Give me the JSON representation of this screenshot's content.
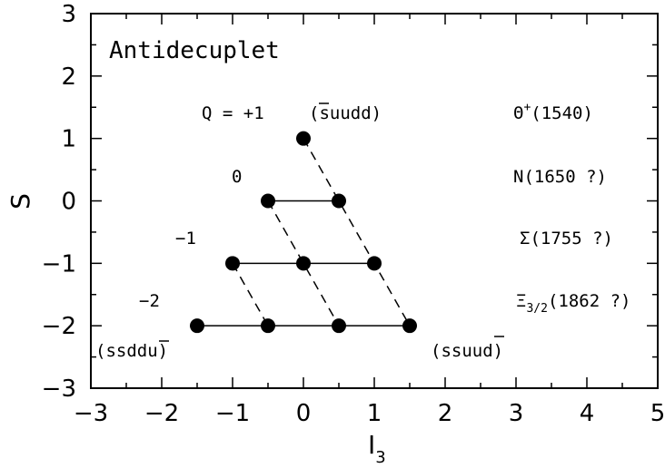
{
  "chart_data": {
    "type": "scatter",
    "title": "Antidecuplet",
    "xlabel": "I",
    "xlabel_sub": "3",
    "ylabel": "S",
    "xlim": [
      -3,
      5
    ],
    "ylim": [
      -3,
      3
    ],
    "xticks": [
      -3,
      -2,
      -1,
      0,
      1,
      2,
      3,
      4,
      5
    ],
    "yticks": [
      -3,
      -2,
      -1,
      0,
      1,
      2,
      3
    ],
    "xtick_labels": [
      "−3",
      "−2",
      "−1",
      "0",
      "1",
      "2",
      "3",
      "4",
      "5"
    ],
    "ytick_labels": [
      "−3",
      "−2",
      "−1",
      "0",
      "1",
      "2",
      "3"
    ],
    "points": [
      {
        "x": 0,
        "y": 1
      },
      {
        "x": -0.5,
        "y": 0
      },
      {
        "x": 0.5,
        "y": 0
      },
      {
        "x": -1,
        "y": -1
      },
      {
        "x": 0,
        "y": -1
      },
      {
        "x": 1,
        "y": -1
      },
      {
        "x": -1.5,
        "y": -2
      },
      {
        "x": -0.5,
        "y": -2
      },
      {
        "x": 0.5,
        "y": -2
      },
      {
        "x": 1.5,
        "y": -2
      }
    ],
    "solid_lines": [
      [
        [
          -0.5,
          0
        ],
        [
          0.5,
          0
        ]
      ],
      [
        [
          -1,
          -1
        ],
        [
          1,
          -1
        ]
      ],
      [
        [
          -1.5,
          -2
        ],
        [
          1.5,
          -2
        ]
      ]
    ],
    "dashed_lines": [
      [
        [
          0,
          1
        ],
        [
          1.5,
          -2
        ]
      ],
      [
        [
          -0.5,
          0
        ],
        [
          0.5,
          -2
        ]
      ],
      [
        [
          -1,
          -1
        ],
        [
          -0.5,
          -2
        ]
      ]
    ],
    "charge_labels": {
      "q_plus1": "Q  =  +1",
      "quark_plus1": "(suudd)",
      "q_zero": "0",
      "q_minus1": "−1",
      "q_minus2": "−2",
      "quark_left": "(ssddu)",
      "quark_right": "(ssuud)"
    },
    "states": {
      "theta": {
        "symbol": "Θ",
        "sup": "+",
        "mass": "(1540)"
      },
      "n": {
        "symbol": "N",
        "mass": "(1650 ?)"
      },
      "sigma": {
        "symbol": "Σ",
        "mass": "(1755 ?)"
      },
      "xi": {
        "symbol": "Ξ",
        "sub": "3/2",
        "mass": "(1862 ?)"
      }
    },
    "legend": "none",
    "grid": false
  }
}
